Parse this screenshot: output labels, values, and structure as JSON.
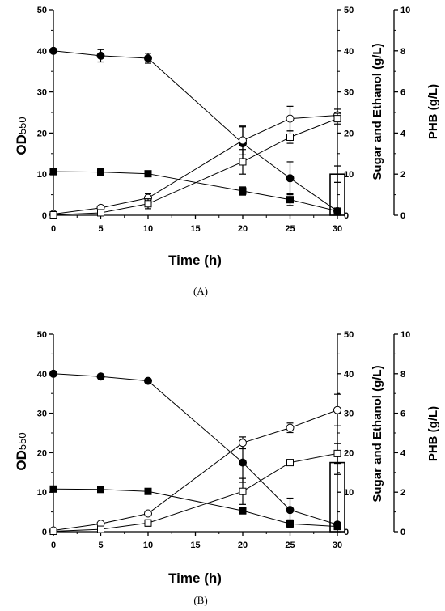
{
  "chart_data": [
    {
      "type": "line",
      "panel_label": "(A)",
      "xlabel": "Time (h)",
      "ylabel_left_main": "OD",
      "ylabel_left_sub": "550",
      "ylabel_right1": "Sugar and Ethanol (g/L)",
      "ylabel_right2": "PHB (g/L)",
      "xlim": [
        0,
        30
      ],
      "ylim_left": [
        0,
        50
      ],
      "ylim_right1": [
        0,
        50
      ],
      "ylim_right2": [
        0,
        10
      ],
      "xticks": [
        "0",
        "5",
        "10",
        "15",
        "20",
        "25",
        "30"
      ],
      "yticks_left": [
        "0",
        "10",
        "20",
        "30",
        "40",
        "50"
      ],
      "yticks_right1": [
        "0",
        "10",
        "20",
        "30",
        "40",
        "50"
      ],
      "yticks_right2": [
        "0",
        "2",
        "4",
        "6",
        "8",
        "10"
      ],
      "series": [
        {
          "marker": "filled-circle",
          "axis": "right1",
          "x": [
            0,
            5,
            10,
            20,
            25,
            30
          ],
          "y": [
            40,
            38.8,
            38.2,
            17.5,
            9,
            1
          ],
          "err": [
            0.5,
            1.5,
            1.2,
            4,
            4,
            0.3
          ]
        },
        {
          "marker": "filled-square",
          "axis": "right1",
          "x": [
            0,
            5,
            10,
            20,
            25,
            30
          ],
          "y": [
            10.6,
            10.5,
            10.1,
            5.9,
            3.8,
            1
          ],
          "err": [
            0.6,
            0.8,
            0.7,
            1,
            1.4,
            0.3
          ]
        },
        {
          "marker": "open-circle",
          "axis": "left",
          "x": [
            0,
            5,
            10,
            20,
            25,
            30
          ],
          "y": [
            0.3,
            1.8,
            4.2,
            18.2,
            23.5,
            24.3
          ],
          "err": [
            0.3,
            0.5,
            1,
            3.5,
            3,
            1.5
          ]
        },
        {
          "marker": "open-square",
          "axis": "left",
          "x": [
            0,
            5,
            10,
            20,
            25,
            30
          ],
          "y": [
            0.1,
            0.6,
            2.8,
            13,
            19,
            23.5
          ],
          "err": [
            0.1,
            0.3,
            1.2,
            3,
            1.5,
            1.3
          ]
        },
        {
          "marker": "bar",
          "axis": "right2",
          "x": [
            30
          ],
          "y": [
            2.0
          ],
          "err": [
            0.4
          ]
        }
      ]
    },
    {
      "type": "line",
      "panel_label": "(B)",
      "xlabel": "Time (h)",
      "ylabel_left_main": "OD",
      "ylabel_left_sub": "550",
      "ylabel_right1": "Sugar and Ethanol (g/L)",
      "ylabel_right2": "PHB (g/L)",
      "xlim": [
        0,
        30
      ],
      "ylim_left": [
        0,
        50
      ],
      "ylim_right1": [
        0,
        50
      ],
      "ylim_right2": [
        0,
        10
      ],
      "xticks": [
        "0",
        "5",
        "10",
        "15",
        "20",
        "25",
        "30"
      ],
      "yticks_left": [
        "0",
        "10",
        "20",
        "30",
        "40",
        "50"
      ],
      "yticks_right1": [
        "0",
        "10",
        "20",
        "30",
        "40",
        "50"
      ],
      "yticks_right2": [
        "0",
        "2",
        "4",
        "6",
        "8",
        "10"
      ],
      "series": [
        {
          "marker": "filled-circle",
          "axis": "right1",
          "x": [
            0,
            5,
            10,
            20,
            25,
            30
          ],
          "y": [
            40,
            39.3,
            38.2,
            17.5,
            5.5,
            1.8
          ],
          "err": [
            0.3,
            0.4,
            0.4,
            5,
            3,
            0.5
          ]
        },
        {
          "marker": "filled-square",
          "axis": "right1",
          "x": [
            0,
            5,
            10,
            20,
            25,
            30
          ],
          "y": [
            10.8,
            10.7,
            10.2,
            5.3,
            2,
            1.3
          ],
          "err": [
            0.5,
            0.5,
            0.5,
            0.8,
            1,
            0.6
          ]
        },
        {
          "marker": "open-circle",
          "axis": "left",
          "x": [
            0,
            5,
            10,
            20,
            25,
            30
          ],
          "y": [
            0.3,
            2,
            4.6,
            22.5,
            26.3,
            30.8
          ],
          "err": [
            0.3,
            0.3,
            0.5,
            1.5,
            1.2,
            4
          ]
        },
        {
          "marker": "open-square",
          "axis": "left",
          "x": [
            0,
            5,
            10,
            20,
            25,
            30
          ],
          "y": [
            0.1,
            0.6,
            2.2,
            10.2,
            17.5,
            19.8
          ],
          "err": [
            0.1,
            0.3,
            0.8,
            3.3,
            0.5,
            2.5
          ]
        },
        {
          "marker": "bar",
          "axis": "right2",
          "x": [
            30
          ],
          "y": [
            3.5
          ],
          "err": [
            0.6
          ]
        }
      ]
    }
  ]
}
